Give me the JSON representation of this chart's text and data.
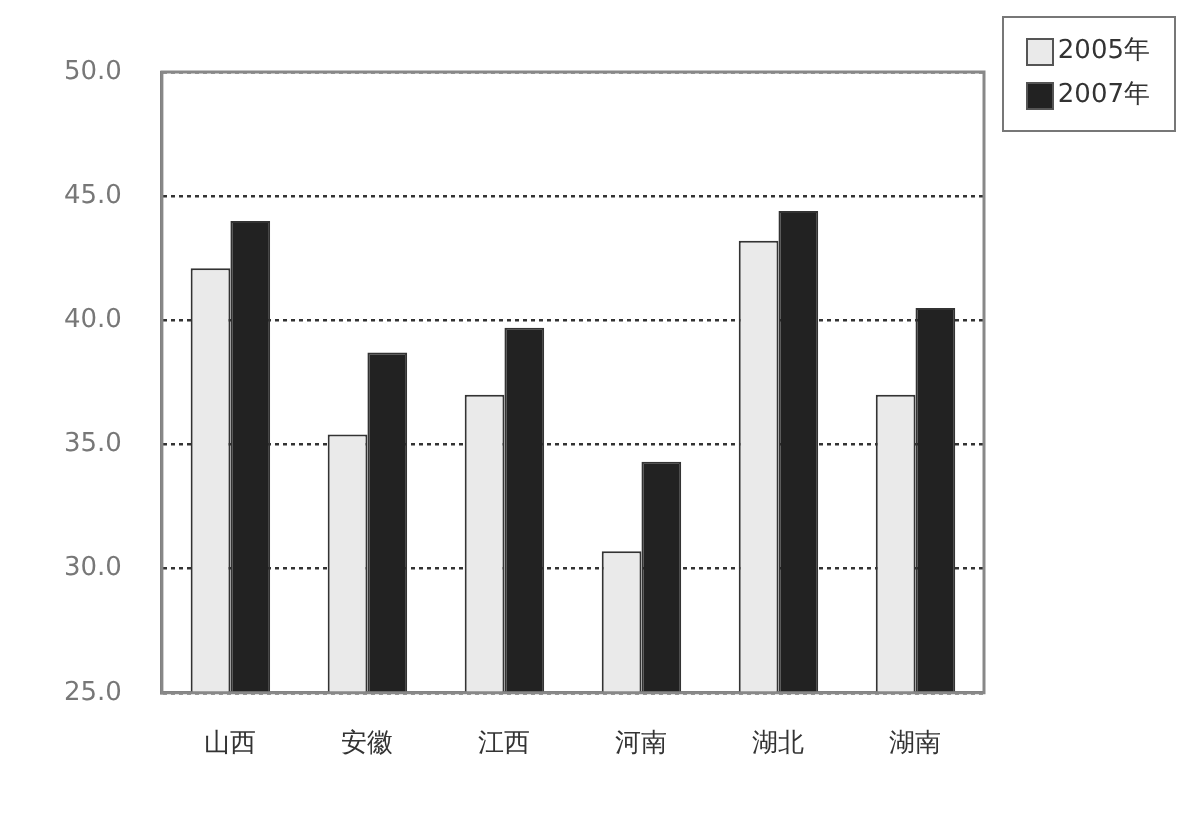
{
  "chart_data": {
    "type": "bar",
    "categories": [
      "山西",
      "安徽",
      "江西",
      "河南",
      "湖北",
      "湖南"
    ],
    "series": [
      {
        "name": "2005年",
        "color": "#eaeaea",
        "values": [
          42.1,
          35.4,
          37.0,
          30.7,
          43.2,
          37.0
        ]
      },
      {
        "name": "2007年",
        "color": "#222222",
        "values": [
          44.0,
          38.7,
          39.7,
          34.3,
          44.4,
          40.5
        ]
      }
    ],
    "ylim": [
      25,
      50
    ],
    "yticks": [
      {
        "value": 25,
        "label": "25.0"
      },
      {
        "value": 30,
        "label": "30.0"
      },
      {
        "value": 35,
        "label": "35.0"
      },
      {
        "value": 40,
        "label": "40.0"
      },
      {
        "value": 45,
        "label": "45.0"
      },
      {
        "value": 50,
        "label": "50.0"
      }
    ],
    "grid": "y",
    "legend": "top right"
  }
}
